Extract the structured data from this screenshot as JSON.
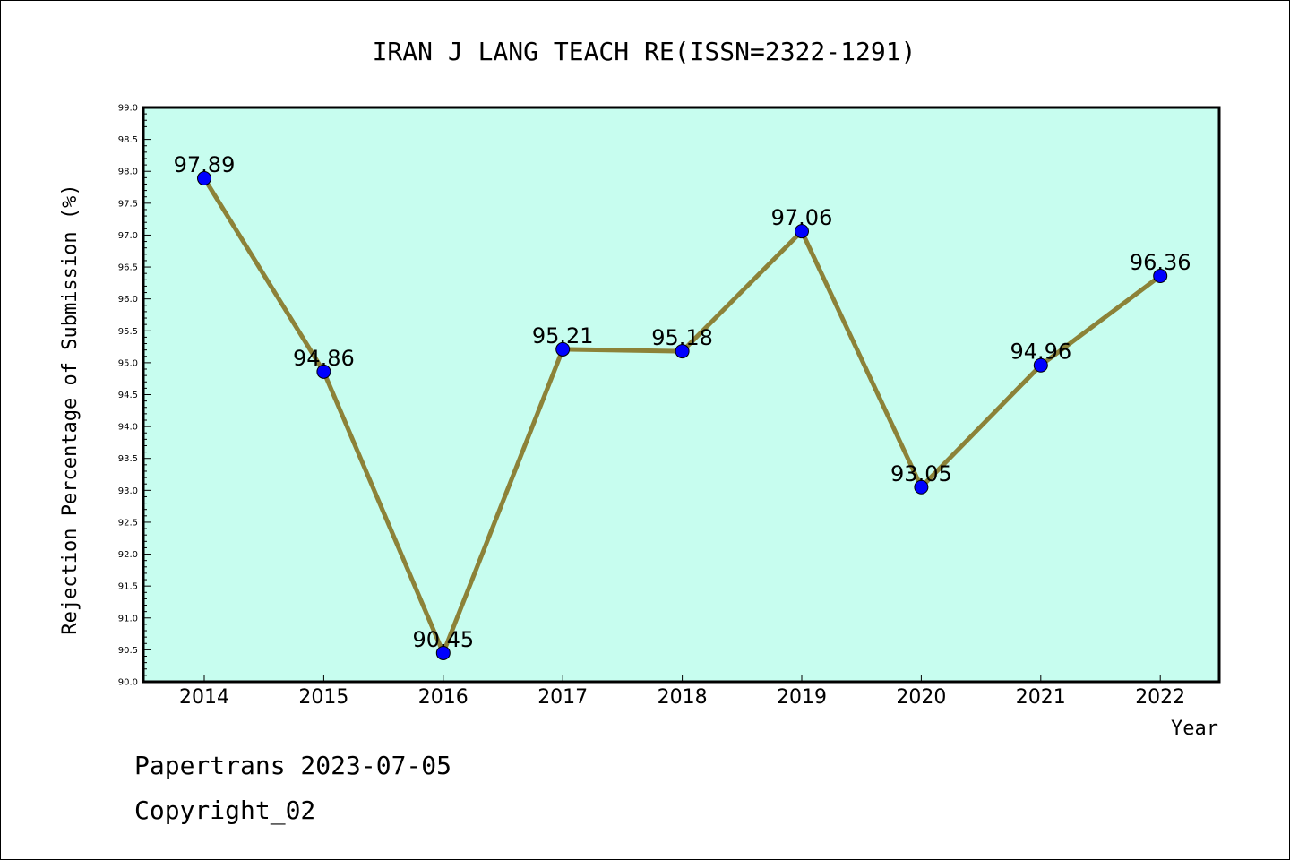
{
  "chart_data": {
    "type": "line",
    "title": "IRAN J LANG TEACH RE(ISSN=2322-1291)",
    "xlabel": "Year",
    "ylabel": "Rejection Percentage of Submission (%)",
    "categories": [
      "2014",
      "2015",
      "2016",
      "2017",
      "2018",
      "2019",
      "2020",
      "2021",
      "2022"
    ],
    "series": [
      {
        "values": [
          97.89,
          94.86,
          90.45,
          95.21,
          95.18,
          97.06,
          93.05,
          94.96,
          96.36
        ]
      }
    ],
    "data_labels": [
      "97.89",
      "94.86",
      "90.45",
      "95.21",
      "95.18",
      "97.06",
      "93.05",
      "94.96",
      "96.36"
    ],
    "ylim": [
      90.0,
      99.0
    ],
    "yticks": [
      "90.0",
      "90.5",
      "91.0",
      "91.5",
      "92.0",
      "92.5",
      "93.0",
      "93.5",
      "94.0",
      "94.5",
      "95.0",
      "95.5",
      "96.0",
      "96.5",
      "97.0",
      "97.5",
      "98.0",
      "98.5",
      "99.0"
    ],
    "grid": false,
    "colors": {
      "plot_background": "#c7fdef",
      "line": "#8c8238",
      "marker": "#0000ff"
    }
  },
  "footer": {
    "line1": "Papertrans 2023-07-05",
    "line2": "Copyright_02"
  }
}
